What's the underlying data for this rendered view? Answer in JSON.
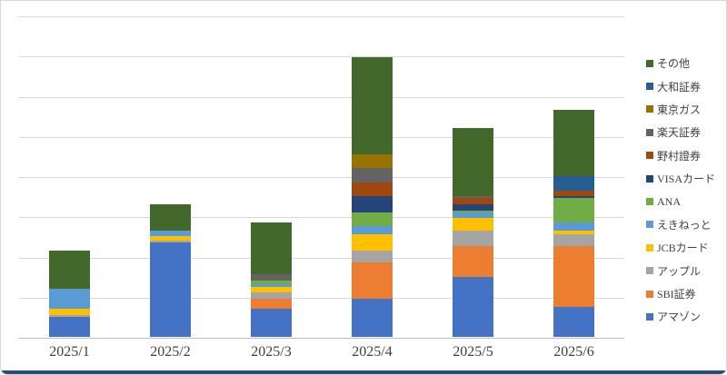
{
  "figure": {
    "background": "#FFFFFF",
    "border_color": "#D9D9D9",
    "bottom_bar_color": "#2A4A73"
  },
  "axis": {
    "gridline_color": "#D9D9D9",
    "axis_line_color": "#BFBFBF",
    "label_color": "#404040",
    "y_axis_labels_visible": false
  },
  "chart_data": {
    "type": "bar",
    "stacked": true,
    "title": "",
    "xlabel": "",
    "ylabel": "",
    "categories": [
      "2025/1",
      "2025/2",
      "2025/3",
      "2025/4",
      "2025/5",
      "2025/6"
    ],
    "series": [
      {
        "name": "アマゾン",
        "color": "#4472C4",
        "values": [
          5,
          23.5,
          7,
          9.5,
          15,
          7.5
        ]
      },
      {
        "name": "SBI証券",
        "color": "#ED7D31",
        "values": [
          0,
          0,
          2.5,
          9,
          7.5,
          15
        ]
      },
      {
        "name": "アップル",
        "color": "#A5A5A5",
        "values": [
          0.5,
          0.5,
          1.5,
          3,
          4,
          3
        ]
      },
      {
        "name": "JCBカード",
        "color": "#FFC000",
        "values": [
          1.5,
          1,
          1.5,
          4,
          3,
          1
        ]
      },
      {
        "name": "えきねっと",
        "color": "#5B9BD5",
        "values": [
          5,
          1.5,
          0.5,
          2,
          1.5,
          2
        ]
      },
      {
        "name": "ANA",
        "color": "#70AD47",
        "values": [
          0,
          0,
          1,
          3.5,
          0.5,
          6
        ]
      },
      {
        "name": "VISAカード",
        "color": "#264478",
        "values": [
          0,
          0,
          0,
          4,
          1.5,
          0.5
        ]
      },
      {
        "name": "野村證券",
        "color": "#9E480E",
        "values": [
          0,
          0,
          0,
          3.5,
          1.5,
          1.5
        ]
      },
      {
        "name": "楽天証券",
        "color": "#636363",
        "values": [
          0,
          0,
          1.5,
          3.5,
          0.5,
          0
        ]
      },
      {
        "name": "東京ガス",
        "color": "#997300",
        "values": [
          0,
          0,
          0,
          3.5,
          0,
          0
        ]
      },
      {
        "name": "大和証券",
        "color": "#255E91",
        "values": [
          0,
          0,
          0,
          0,
          0,
          3.5
        ]
      },
      {
        "name": "その他",
        "color": "#43682B",
        "values": [
          9.5,
          6.5,
          13,
          24,
          17,
          16.5
        ]
      }
    ],
    "ylim": [
      0,
      80
    ],
    "gridline_interval": 10,
    "grid": true,
    "legend_position": "right",
    "legend_order_top_to_bottom": [
      "その他",
      "大和証券",
      "東京ガス",
      "楽天証券",
      "野村證券",
      "VISAカード",
      "ANA",
      "えきねっと",
      "JCBカード",
      "アップル",
      "SBI証券",
      "アマゾン"
    ],
    "note": "y-axis has no visible tick labels; values estimated assuming one gridline interval = 10 units"
  }
}
